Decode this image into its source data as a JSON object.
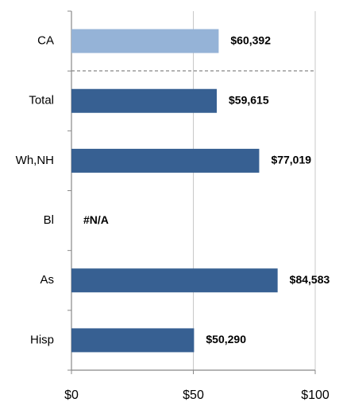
{
  "chart_data": {
    "type": "bar",
    "orientation": "horizontal",
    "categories": [
      "CA",
      "Total",
      "Wh,NH",
      "Bl",
      "As",
      "Hisp"
    ],
    "values": [
      60.392,
      59.615,
      77.019,
      null,
      84.583,
      50.29
    ],
    "value_labels": [
      "$60,392",
      "$59,615",
      "$77,019",
      "#N/A",
      "$84,583",
      "$50,290"
    ],
    "colors": [
      "#95b3d7",
      "#376092",
      "#376092",
      "#376092",
      "#376092",
      "#376092"
    ],
    "xlim": [
      0,
      100
    ],
    "xticks": [
      {
        "value": 0,
        "label": "$0"
      },
      {
        "value": 50,
        "label": "$50"
      },
      {
        "value": 100,
        "label": "$100"
      }
    ],
    "grid": true
  }
}
